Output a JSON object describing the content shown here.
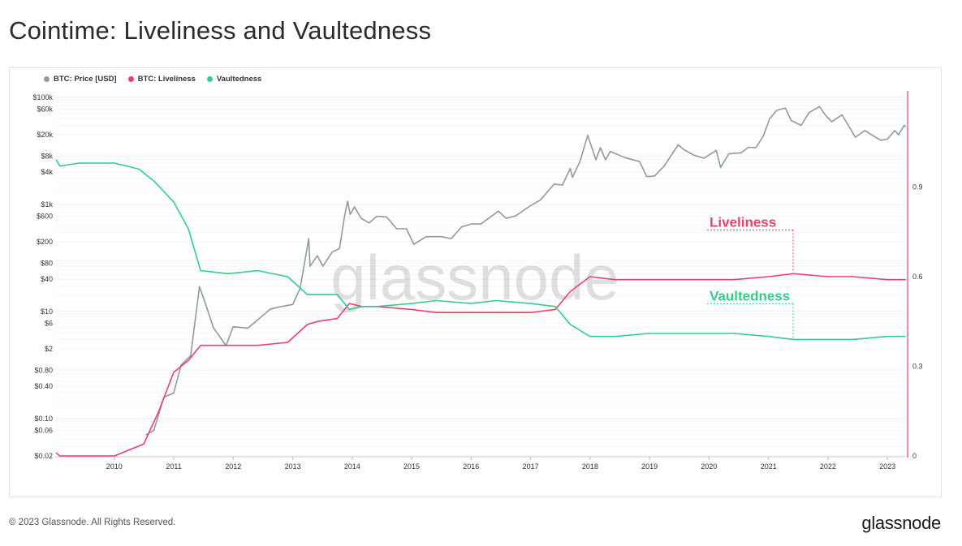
{
  "title": "Cointime: Liveliness and Vaultedness",
  "footer": {
    "copyright": "© 2023 Glassnode. All Rights Reserved.",
    "logo": "glassnode"
  },
  "watermark": "glassnode",
  "colors": {
    "price": "#8f9aa0",
    "liveliness": "#ee3f6a",
    "vaultedness": "#2fd08c"
  },
  "chart_data": {
    "type": "line",
    "title": "Cointime: Liveliness and Vaultedness",
    "legend": {
      "placement": "top-left",
      "entries": [
        "BTC: Price [USD]",
        "BTC: Liveliness",
        "Vaultedness"
      ]
    },
    "x_axis": {
      "ticks": [
        "2010",
        "2011",
        "2012",
        "2013",
        "2014",
        "2015",
        "2016",
        "2017",
        "2018",
        "2019",
        "2020",
        "2021",
        "2022",
        "2023"
      ],
      "range": [
        "2009-01-03",
        "2023-04-20"
      ]
    },
    "y_left": {
      "scale": "log",
      "range": [
        0.02,
        100000
      ],
      "ticks": [
        {
          "label": "$100k",
          "value": 100000
        },
        {
          "label": "$60k",
          "value": 60000
        },
        {
          "label": "$20k",
          "value": 20000
        },
        {
          "label": "$8k",
          "value": 8000
        },
        {
          "label": "$4k",
          "value": 4000
        },
        {
          "label": "$1k",
          "value": 1000
        },
        {
          "label": "$600",
          "value": 600
        },
        {
          "label": "$200",
          "value": 200
        },
        {
          "label": "$80",
          "value": 80
        },
        {
          "label": "$40",
          "value": 40
        },
        {
          "label": "$10",
          "value": 10
        },
        {
          "label": "$6",
          "value": 6
        },
        {
          "label": "$2",
          "value": 2
        },
        {
          "label": "$0.80",
          "value": 0.8
        },
        {
          "label": "$0.40",
          "value": 0.4
        },
        {
          "label": "$0.10",
          "value": 0.1
        },
        {
          "label": "$0.06",
          "value": 0.06
        },
        {
          "label": "$0.02",
          "value": 0.02
        }
      ]
    },
    "y_right": {
      "scale": "linear",
      "range": [
        0,
        1.2
      ],
      "ticks": [
        {
          "label": "0",
          "value": 0
        },
        {
          "label": "0.3",
          "value": 0.3
        },
        {
          "label": "0.6",
          "value": 0.6
        },
        {
          "label": "0.9",
          "value": 0.9
        }
      ]
    },
    "grid": "horizontal",
    "annotations": [
      {
        "text": "Liveliness",
        "series": "BTC: Liveliness",
        "at_date": "2021-06-01"
      },
      {
        "text": "Vaultedness",
        "series": "Vaultedness",
        "at_date": "2021-06-01"
      }
    ],
    "series": [
      {
        "name": "BTC: Price [USD]",
        "axis": "left",
        "x": [
          "2010-07-17",
          "2010-09-01",
          "2010-11-01",
          "2011-01-01",
          "2011-02-15",
          "2011-04-15",
          "2011-06-08",
          "2011-07-15",
          "2011-09-01",
          "2011-11-18",
          "2012-01-01",
          "2012-04-01",
          "2012-08-15",
          "2012-10-01",
          "2013-01-01",
          "2013-02-15",
          "2013-04-09",
          "2013-04-17",
          "2013-06-01",
          "2013-07-05",
          "2013-09-01",
          "2013-10-15",
          "2013-11-15",
          "2013-12-04",
          "2013-12-20",
          "2014-01-15",
          "2014-02-25",
          "2014-04-15",
          "2014-06-01",
          "2014-08-01",
          "2014-10-01",
          "2014-12-01",
          "2015-01-14",
          "2015-04-01",
          "2015-07-01",
          "2015-09-01",
          "2015-11-04",
          "2016-01-01",
          "2016-03-01",
          "2016-06-17",
          "2016-08-02",
          "2016-10-01",
          "2017-01-01",
          "2017-03-01",
          "2017-05-25",
          "2017-07-15",
          "2017-09-01",
          "2017-09-15",
          "2017-11-01",
          "2017-12-17",
          "2018-02-06",
          "2018-03-05",
          "2018-04-06",
          "2018-05-05",
          "2018-08-01",
          "2018-11-01",
          "2018-12-15",
          "2019-02-01",
          "2019-04-01",
          "2019-06-26",
          "2019-08-01",
          "2019-10-01",
          "2019-12-01",
          "2020-02-15",
          "2020-03-13",
          "2020-05-01",
          "2020-07-15",
          "2020-09-01",
          "2020-10-15",
          "2020-11-30",
          "2021-01-08",
          "2021-02-20",
          "2021-04-14",
          "2021-05-20",
          "2021-07-20",
          "2021-09-07",
          "2021-11-10",
          "2021-12-15",
          "2022-01-24",
          "2022-03-28",
          "2022-05-12",
          "2022-06-18",
          "2022-08-15",
          "2022-10-01",
          "2022-11-21",
          "2023-01-01",
          "2023-02-15",
          "2023-03-10",
          "2023-04-14",
          "2023-04-20"
        ],
        "values": [
          0.05,
          0.06,
          0.25,
          0.3,
          1.0,
          1.5,
          29,
          14,
          5,
          2.3,
          5.2,
          4.9,
          11,
          12,
          13.5,
          27,
          230,
          70,
          110,
          70,
          130,
          150,
          600,
          1150,
          650,
          900,
          550,
          450,
          600,
          580,
          350,
          350,
          180,
          250,
          250,
          230,
          380,
          430,
          430,
          750,
          550,
          610,
          950,
          1200,
          2400,
          2300,
          4700,
          3200,
          6500,
          19500,
          6800,
          11500,
          6800,
          9800,
          7500,
          6300,
          3300,
          3400,
          5200,
          13000,
          10500,
          8300,
          7300,
          10200,
          4900,
          8800,
          9200,
          11700,
          11500,
          19000,
          40000,
          57000,
          63000,
          37000,
          30000,
          52000,
          67500,
          47000,
          35000,
          47000,
          28000,
          18000,
          24000,
          19500,
          15800,
          16600,
          24000,
          20000,
          30000,
          28500
        ]
      },
      {
        "name": "BTC: Liveliness",
        "axis": "right",
        "x": [
          "2009-01-10",
          "2009-02-01",
          "2009-06-01",
          "2010-01-01",
          "2010-07-01",
          "2010-10-01",
          "2011-01-01",
          "2011-04-01",
          "2011-06-15",
          "2011-12-01",
          "2012-06-01",
          "2012-12-01",
          "2013-04-01",
          "2013-06-01",
          "2013-10-01",
          "2013-12-15",
          "2014-03-01",
          "2014-06-01",
          "2015-01-01",
          "2015-06-01",
          "2016-01-01",
          "2016-06-01",
          "2017-01-01",
          "2017-06-01",
          "2017-09-01",
          "2017-12-31",
          "2018-06-01",
          "2019-01-01",
          "2019-06-01",
          "2020-01-01",
          "2020-06-01",
          "2021-01-01",
          "2021-06-01",
          "2022-01-01",
          "2022-06-01",
          "2023-01-01",
          "2023-04-20"
        ],
        "values": [
          0.01,
          0.0,
          0.0,
          0.0,
          0.04,
          0.15,
          0.28,
          0.32,
          0.37,
          0.37,
          0.37,
          0.38,
          0.44,
          0.45,
          0.46,
          0.51,
          0.5,
          0.5,
          0.49,
          0.48,
          0.48,
          0.48,
          0.48,
          0.49,
          0.55,
          0.6,
          0.59,
          0.59,
          0.59,
          0.59,
          0.59,
          0.6,
          0.61,
          0.6,
          0.6,
          0.59,
          0.59
        ]
      },
      {
        "name": "Vaultedness",
        "axis": "right",
        "x": [
          "2009-01-10",
          "2009-02-01",
          "2009-06-01",
          "2010-01-01",
          "2010-06-01",
          "2010-09-01",
          "2011-01-01",
          "2011-04-01",
          "2011-06-15",
          "2011-12-01",
          "2012-06-01",
          "2012-12-01",
          "2013-04-01",
          "2013-06-01",
          "2013-10-01",
          "2013-12-15",
          "2014-03-01",
          "2014-06-01",
          "2015-01-01",
          "2015-06-01",
          "2016-01-01",
          "2016-06-01",
          "2017-01-01",
          "2017-06-01",
          "2017-09-01",
          "2017-12-31",
          "2018-06-01",
          "2019-01-01",
          "2019-06-01",
          "2020-01-01",
          "2020-06-01",
          "2021-01-01",
          "2021-06-01",
          "2022-01-01",
          "2022-06-01",
          "2023-01-01",
          "2023-04-20"
        ],
        "values": [
          0.99,
          0.97,
          0.98,
          0.98,
          0.96,
          0.92,
          0.85,
          0.76,
          0.62,
          0.61,
          0.62,
          0.6,
          0.54,
          0.54,
          0.54,
          0.49,
          0.5,
          0.5,
          0.51,
          0.52,
          0.51,
          0.52,
          0.51,
          0.5,
          0.44,
          0.4,
          0.4,
          0.41,
          0.41,
          0.41,
          0.41,
          0.4,
          0.39,
          0.39,
          0.39,
          0.4,
          0.4
        ]
      }
    ]
  }
}
